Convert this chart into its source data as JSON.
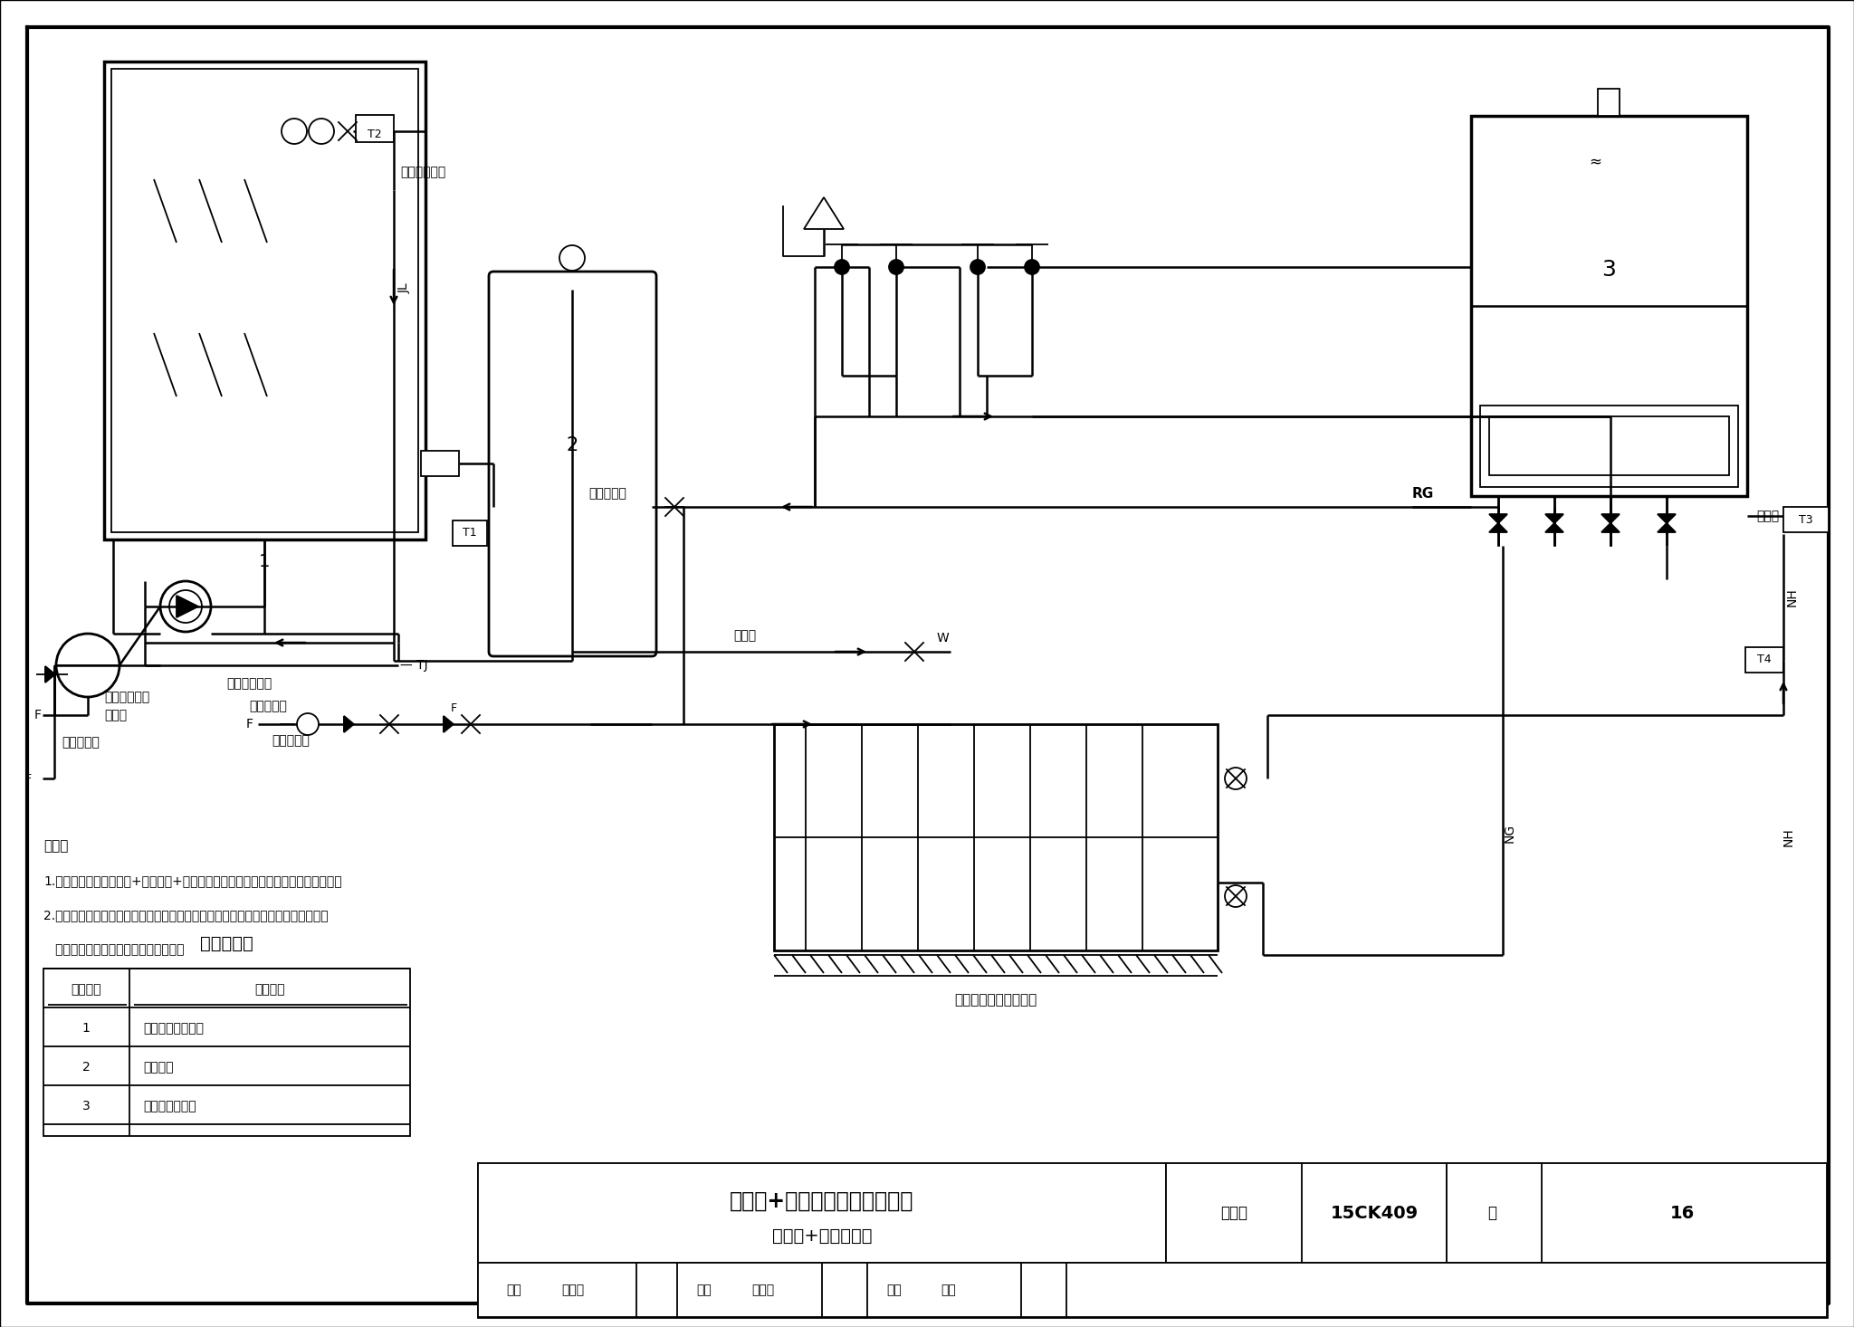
{
  "title": "太阳能+燃气热水供暖炉系统图",
  "subtitle": "（卫浴+供暖功能）",
  "figure_number": "15CK409",
  "page": "16",
  "background_color": "#ffffff",
  "table_title": "主要设备表",
  "table_headers": [
    "设备编号",
    "设备名称"
  ],
  "table_rows": [
    [
      "1",
      "太阳能平板集热器"
    ],
    [
      "2",
      "承压水箱"
    ],
    [
      "3",
      "燃气热水供暖炉"
    ]
  ],
  "notes": [
    "说明：",
    "1.本系统为太阳能集热器+承压水箱+燃气热水供暖炉系统提供生活热水和供暖热水。",
    "2.太阳能集热器采用间接系统方案，承压水箱内置换热盘管。供暖热水不进入水箱，",
    "   全部加热负荷由燃气热水供暖炉承担。"
  ]
}
